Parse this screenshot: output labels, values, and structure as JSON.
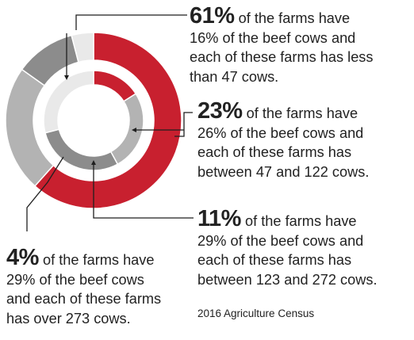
{
  "colors": {
    "red": "#c8202f",
    "light_gray": "#e9e9e9",
    "mid_gray": "#b3b3b3",
    "dark_gray": "#8c8c8c",
    "line": "#1f1f1f"
  },
  "chart_data": {
    "type": "pie",
    "title": "",
    "rings": [
      {
        "name": "",
        "values": [
          16,
          26,
          29,
          29
        ],
        "colors": [
          "#c8202f",
          "#b3b3b3",
          "#8c8c8c",
          "#e9e9e9"
        ]
      },
      {
        "name": "",
        "values": [
          61,
          23,
          11,
          4
        ],
        "colors": [
          "#c8202f",
          "#b3b3b3",
          "#8c8c8c",
          "#e9e9e9"
        ]
      }
    ],
    "annotations": [
      {
        "key": "a61",
        "percent": "61%",
        "lines": [
          "of the farms have",
          "16% of the beef cows and",
          "each of these farms has less",
          "than 47 cows."
        ]
      },
      {
        "key": "a23",
        "percent": "23%",
        "lines": [
          "of the farms have",
          "26% of the beef cows and",
          "each of these farms has",
          "between 47 and 122 cows."
        ]
      },
      {
        "key": "a11",
        "percent": "11%",
        "lines": [
          "of the farms have",
          "29% of the beef cows and",
          "each of these farms has",
          "between 123 and 272 cows."
        ]
      },
      {
        "key": "a4",
        "percent": "4%",
        "lines": [
          "of the farms have",
          "29% of the beef cows",
          "and each of these farms",
          "has over 273 cows."
        ]
      }
    ],
    "source": "2016 Agriculture Census",
    "legend": "none",
    "grid": false
  }
}
